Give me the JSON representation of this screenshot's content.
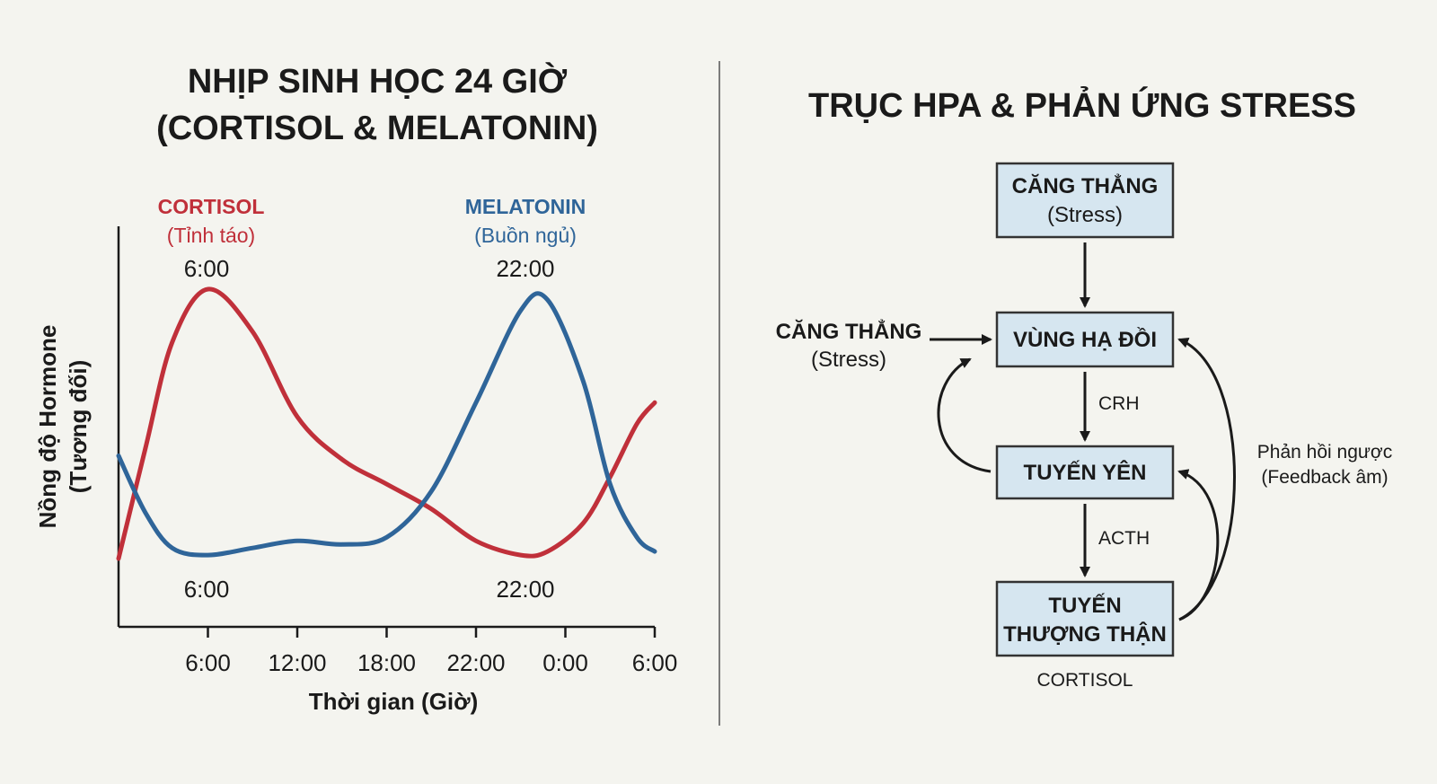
{
  "chart_panel": {
    "title_line1": "NHỊP SINH HỌC 24 GIỜ",
    "title_line2": "(CORTISOL & MELATONIN)",
    "cortisol_name": "CORTISOL",
    "cortisol_sub": "(Tỉnh táo)",
    "melatonin_name": "MELATONIN",
    "melatonin_sub": "(Buồn ngủ)",
    "cortisol_peak_label": "6:00",
    "melatonin_peak_label": "22:00",
    "melatonin_low_label": "6:00",
    "cortisol_low_label": "22:00",
    "ylabel_line1": "Nồng độ Hormone",
    "ylabel_line2": "(Tương đối)",
    "xlabel": "Thời gian (Giờ)",
    "colors": {
      "cortisol": "#c0303a",
      "melatonin": "#2f6599"
    }
  },
  "chart_data": {
    "type": "line",
    "x": [
      "6:00",
      "12:00",
      "18:00",
      "22:00",
      "0:00",
      "6:00"
    ],
    "ylim": [
      0,
      1
    ],
    "grid": false,
    "series": [
      {
        "name": "CORTISOL",
        "points": [
          [
            0,
            0.24
          ],
          [
            0.3,
            0.55
          ],
          [
            0.6,
            0.85
          ],
          [
            1,
            1.0
          ],
          [
            1.5,
            0.88
          ],
          [
            2,
            0.64
          ],
          [
            2.5,
            0.52
          ],
          [
            3,
            0.45
          ],
          [
            3.5,
            0.38
          ],
          [
            4,
            0.29
          ],
          [
            4.5,
            0.25
          ],
          [
            4.8,
            0.26
          ],
          [
            5.2,
            0.34
          ],
          [
            5.5,
            0.47
          ],
          [
            5.8,
            0.62
          ],
          [
            6,
            0.68
          ]
        ]
      },
      {
        "name": "MELATONIN",
        "points": [
          [
            0,
            0.53
          ],
          [
            0.3,
            0.37
          ],
          [
            0.6,
            0.27
          ],
          [
            1,
            0.25
          ],
          [
            1.5,
            0.27
          ],
          [
            2,
            0.29
          ],
          [
            2.5,
            0.28
          ],
          [
            3,
            0.3
          ],
          [
            3.5,
            0.43
          ],
          [
            4,
            0.68
          ],
          [
            4.5,
            0.94
          ],
          [
            4.8,
            0.97
          ],
          [
            5.2,
            0.74
          ],
          [
            5.5,
            0.45
          ],
          [
            5.8,
            0.3
          ],
          [
            6,
            0.26
          ]
        ]
      }
    ]
  },
  "hpa_panel": {
    "title": "TRỤC HPA & PHẢN ỨNG STRESS",
    "stress_box_line1": "CĂNG THẲNG",
    "stress_box_line2": "(Stress)",
    "hypothalamus": "VÙNG HẠ ĐỒI",
    "pituitary": "TUYẾN YÊN",
    "adrenal_line1": "TUYẾN",
    "adrenal_line2": "THƯỢNG THẬN",
    "crh": "CRH",
    "acth": "ACTH",
    "cortisol_output": "CORTISOL",
    "side_stress_line1": "CĂNG THẲNG",
    "side_stress_line2": "(Stress)",
    "feedback_line1": "Phản hồi ngược",
    "feedback_line2": "(Feedback âm)",
    "colors": {
      "box_fill": "#d6e6f0",
      "box_border": "#333333"
    }
  }
}
